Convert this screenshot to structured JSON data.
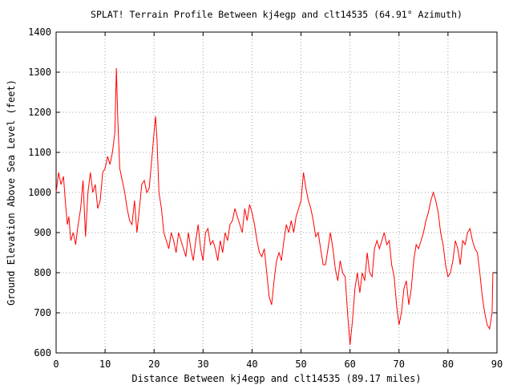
{
  "chart_data": {
    "type": "line",
    "title": "SPLAT! Terrain Profile Between kj4egp and clt14535 (64.91° Azimuth)",
    "xlabel": "Distance Between kj4egp and clt14535 (89.17 miles)",
    "ylabel": "Ground Elevation Above Sea Level (feet)",
    "xlim": [
      0,
      90
    ],
    "ylim": [
      600,
      1400
    ],
    "xticks": [
      0,
      10,
      20,
      30,
      40,
      50,
      60,
      70,
      80,
      90
    ],
    "yticks": [
      600,
      700,
      800,
      900,
      1000,
      1100,
      1200,
      1300,
      1400
    ],
    "grid": true,
    "line_color": "#ff0000",
    "series": [
      {
        "x": [
          0,
          0.5,
          1,
          1.5,
          2,
          2.3,
          2.6,
          3,
          3.5,
          4,
          4.5,
          5,
          5.5,
          6,
          6.5,
          7,
          7.5,
          8,
          8.5,
          9,
          9.5,
          10,
          10.5,
          11,
          11.5,
          12,
          12.3,
          12.6,
          13,
          13.5,
          14,
          14.5,
          15,
          15.5,
          16,
          16.5,
          17,
          17.5,
          18,
          18.5,
          19,
          19.5,
          20,
          20.3,
          20.6,
          21,
          21.5,
          22,
          22.5,
          23,
          23.5,
          24,
          24.5,
          25,
          25.5,
          26,
          26.5,
          27,
          27.5,
          28,
          28.5,
          29,
          29.5,
          30,
          30.5,
          31,
          31.5,
          32,
          32.5,
          33,
          33.5,
          34,
          34.5,
          35,
          35.5,
          36,
          36.5,
          37,
          37.5,
          38,
          38.5,
          39,
          39.5,
          40,
          40.5,
          41,
          41.5,
          42,
          42.5,
          43,
          43.5,
          44,
          44.5,
          45,
          45.5,
          46,
          46.5,
          47,
          47.5,
          48,
          48.5,
          49,
          49.5,
          50,
          50.5,
          51,
          51.5,
          52,
          52.5,
          53,
          53.5,
          54,
          54.5,
          55,
          55.5,
          56,
          56.5,
          57,
          57.5,
          58,
          58.5,
          59,
          59.5,
          60,
          60.5,
          61,
          61.5,
          62,
          62.5,
          63,
          63.5,
          64,
          64.5,
          65,
          65.5,
          66,
          66.5,
          67,
          67.5,
          68,
          68.5,
          69,
          69.5,
          70,
          70.5,
          71,
          71.5,
          72,
          72.5,
          73,
          73.5,
          74,
          74.5,
          75,
          75.5,
          76,
          76.5,
          77,
          77.5,
          78,
          78.5,
          79,
          79.5,
          80,
          80.5,
          81,
          81.5,
          82,
          82.5,
          83,
          83.5,
          84,
          84.5,
          85,
          85.5,
          86,
          86.5,
          87,
          87.5,
          88,
          88.5,
          89,
          89.17
        ],
        "values": [
          1000,
          1050,
          1020,
          1040,
          960,
          920,
          940,
          880,
          900,
          870,
          920,
          960,
          1030,
          890,
          1000,
          1050,
          1000,
          1020,
          960,
          980,
          1050,
          1060,
          1090,
          1070,
          1100,
          1150,
          1310,
          1180,
          1060,
          1030,
          1000,
          960,
          930,
          920,
          980,
          900,
          960,
          1020,
          1030,
          1000,
          1010,
          1080,
          1150,
          1190,
          1130,
          1000,
          960,
          900,
          880,
          860,
          900,
          880,
          850,
          900,
          880,
          860,
          840,
          900,
          860,
          830,
          880,
          920,
          860,
          830,
          900,
          910,
          870,
          880,
          860,
          830,
          880,
          850,
          900,
          880,
          920,
          930,
          960,
          940,
          920,
          900,
          960,
          930,
          970,
          950,
          920,
          880,
          850,
          840,
          860,
          800,
          740,
          720,
          780,
          830,
          850,
          830,
          880,
          920,
          900,
          930,
          900,
          940,
          960,
          980,
          1050,
          1010,
          980,
          960,
          930,
          890,
          900,
          860,
          820,
          820,
          860,
          900,
          860,
          810,
          780,
          830,
          800,
          790,
          700,
          620,
          680,
          760,
          800,
          750,
          800,
          780,
          850,
          800,
          790,
          860,
          880,
          860,
          880,
          900,
          870,
          880,
          820,
          790,
          720,
          670,
          700,
          760,
          780,
          720,
          760,
          830,
          870,
          860,
          880,
          900,
          930,
          950,
          980,
          1000,
          980,
          950,
          900,
          870,
          820,
          790,
          800,
          830,
          880,
          860,
          820,
          880,
          870,
          900,
          910,
          880,
          860,
          850,
          800,
          740,
          700,
          670,
          660,
          700,
          800
        ]
      }
    ]
  }
}
